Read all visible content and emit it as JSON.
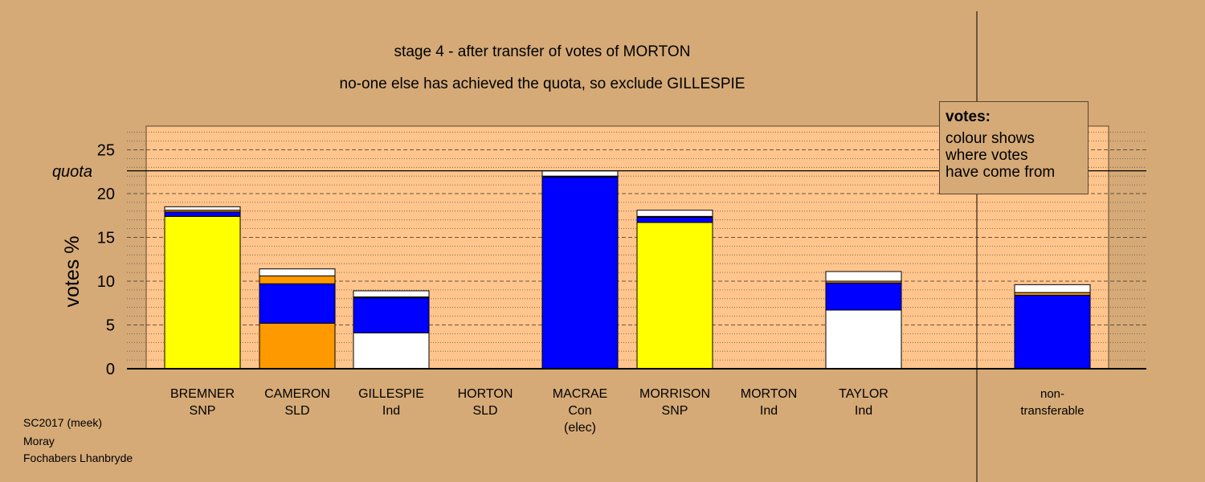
{
  "title_line1": "stage 4 - after transfer of votes of MORTON",
  "title_line2": "no-one else has achieved the quota, so exclude GILLESPIE",
  "legend": {
    "title": "votes:",
    "lines": [
      "colour shows",
      "where votes",
      "have come from"
    ]
  },
  "footer": [
    "SC2017 (meek)",
    "Moray",
    "Fochabers Lhanbryde"
  ],
  "colors": {
    "background": "#d5aa77",
    "plot_area": "#ffc58c",
    "snp": "#ffff00",
    "sld": "#ff9900",
    "con": "#0000ff",
    "ind": "#ffffff"
  },
  "chart_data": {
    "type": "bar",
    "stacked": true,
    "ylabel": "votes %",
    "ylim": [
      0,
      28
    ],
    "yticks": [
      0,
      5,
      10,
      15,
      20,
      25
    ],
    "quota": 22.6,
    "quota_label": "quota",
    "categories": [
      {
        "name": "BREMNER",
        "party": "SNP",
        "note": ""
      },
      {
        "name": "CAMERON",
        "party": "SLD",
        "note": ""
      },
      {
        "name": "GILLESPIE",
        "party": "Ind",
        "note": ""
      },
      {
        "name": "HORTON",
        "party": "SLD",
        "note": ""
      },
      {
        "name": "MACRAE",
        "party": "Con",
        "note": "(elec)"
      },
      {
        "name": "MORRISON",
        "party": "SNP",
        "note": ""
      },
      {
        "name": "MORTON",
        "party": "Ind",
        "note": ""
      },
      {
        "name": "TAYLOR",
        "party": "Ind",
        "note": ""
      },
      {
        "name": "non-",
        "party": "transferable",
        "note": ""
      }
    ],
    "stacks": [
      [
        {
          "value": 17.4,
          "color": "#ffff00"
        },
        {
          "value": 0.5,
          "color": "#0000ff"
        },
        {
          "value": 0.2,
          "color": "#ff9900"
        },
        {
          "value": 0.4,
          "color": "#ffffff"
        }
      ],
      [
        {
          "value": 5.2,
          "color": "#ff9900"
        },
        {
          "value": 4.5,
          "color": "#0000ff"
        },
        {
          "value": 0.9,
          "color": "#ff9900"
        },
        {
          "value": 0.8,
          "color": "#ffffff"
        }
      ],
      [
        {
          "value": 4.1,
          "color": "#ffffff"
        },
        {
          "value": 4.0,
          "color": "#0000ff"
        },
        {
          "value": 0.1,
          "color": "#ff9900"
        },
        {
          "value": 0.7,
          "color": "#ffffff"
        }
      ],
      [],
      [
        {
          "value": 21.9,
          "color": "#0000ff"
        },
        {
          "value": 0.1,
          "color": "#ff9900"
        },
        {
          "value": 0.6,
          "color": "#ffffff"
        }
      ],
      [
        {
          "value": 16.7,
          "color": "#ffff00"
        },
        {
          "value": 0.6,
          "color": "#0000ff"
        },
        {
          "value": 0.1,
          "color": "#ff9900"
        },
        {
          "value": 0.7,
          "color": "#ffffff"
        }
      ],
      [],
      [
        {
          "value": 6.7,
          "color": "#ffffff"
        },
        {
          "value": 3.1,
          "color": "#0000ff"
        },
        {
          "value": 0.2,
          "color": "#ff9900"
        },
        {
          "value": 1.1,
          "color": "#ffffff"
        }
      ],
      [
        {
          "value": 8.4,
          "color": "#0000ff"
        },
        {
          "value": 0.3,
          "color": "#ff9900"
        },
        {
          "value": 0.9,
          "color": "#ffffff"
        }
      ]
    ]
  }
}
